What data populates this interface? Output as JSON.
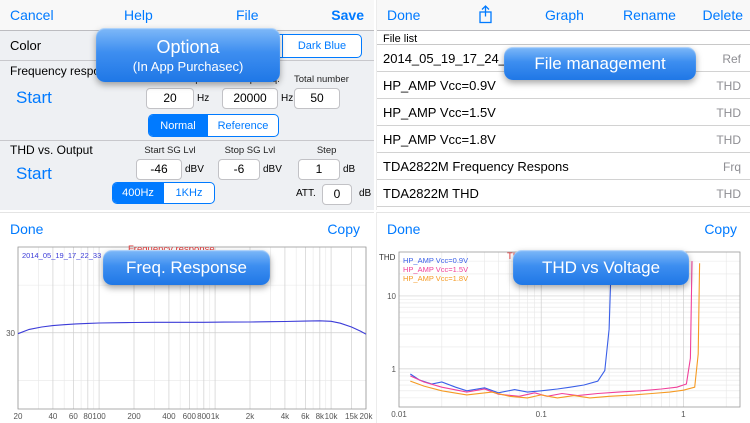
{
  "colors": {
    "accent": "#007aff",
    "title_red": "#e03a3a"
  },
  "settings": {
    "toolbar": {
      "cancel": "Cancel",
      "help": "Help",
      "file": "File",
      "save": "Save"
    },
    "color": {
      "label": "Color",
      "options": [
        "",
        "",
        "Dark Blue"
      ]
    },
    "freq": {
      "title": "Frequency response",
      "start_button": "Start",
      "fields": [
        {
          "label": "Start Freq.",
          "value": "20",
          "unit": "Hz"
        },
        {
          "label": "Stop Freq.",
          "value": "20000",
          "unit": "Hz"
        },
        {
          "label": "Total number",
          "value": "50",
          "unit": ""
        }
      ],
      "mode": {
        "options": [
          "Normal",
          "Reference"
        ],
        "selected": "Normal"
      }
    },
    "thd": {
      "title": "THD vs. Output",
      "start_button": "Start",
      "fields": [
        {
          "label": "Start SG Lvl",
          "value": "-46",
          "unit": "dBV"
        },
        {
          "label": "Stop SG Lvl",
          "value": "-6",
          "unit": "dBV"
        },
        {
          "label": "Step",
          "value": "1",
          "unit": "dB"
        }
      ],
      "sg_freq": {
        "options": [
          "400Hz",
          "1KHz"
        ],
        "selected": "400Hz"
      },
      "att": {
        "label": "ATT.",
        "value": "0",
        "unit": "dB"
      }
    }
  },
  "files": {
    "toolbar": {
      "done": "Done",
      "graph": "Graph",
      "rename": "Rename",
      "delete": "Delete"
    },
    "header": "File list",
    "rows": [
      {
        "name": "2014_05_19_17_24_59",
        "type": "Ref"
      },
      {
        "name": "HP_AMP Vcc=0.9V",
        "type": "THD"
      },
      {
        "name": "HP_AMP Vcc=1.5V",
        "type": "THD"
      },
      {
        "name": "HP_AMP Vcc=1.8V",
        "type": "THD"
      },
      {
        "name": "TDA2822M Frequency Respons",
        "type": "Frq"
      },
      {
        "name": "TDA2822M THD",
        "type": "THD"
      }
    ]
  },
  "graph_panels": {
    "freq": {
      "done": "Done",
      "copy": "Copy"
    },
    "thd": {
      "done": "Done",
      "copy": "Copy"
    }
  },
  "callouts": {
    "options": {
      "line1": "Optiona",
      "line2": "(In App Purchasec)"
    },
    "file_management": "File management",
    "freq_response": "Freq. Response",
    "thd_voltage": "THD vs Voltage"
  },
  "chart_data": [
    {
      "type": "line",
      "title": "Frequency response",
      "title_color": "#e03a3a",
      "x_scale": "log",
      "y_scale": "linear",
      "xlim": [
        20,
        20000
      ],
      "ylim": [
        22,
        39
      ],
      "x_ticks": [
        {
          "v": 20,
          "l": "20"
        },
        {
          "v": 40,
          "l": "40"
        },
        {
          "v": 60,
          "l": "60"
        },
        {
          "v": 80,
          "l": "80"
        },
        {
          "v": 100,
          "l": "100"
        },
        {
          "v": 200,
          "l": "200"
        },
        {
          "v": 400,
          "l": "400"
        },
        {
          "v": 600,
          "l": "600"
        },
        {
          "v": 800,
          "l": "800"
        },
        {
          "v": 1000,
          "l": "1k"
        },
        {
          "v": 2000,
          "l": "2k"
        },
        {
          "v": 4000,
          "l": "4k"
        },
        {
          "v": 6000,
          "l": "6k"
        },
        {
          "v": 8000,
          "l": "8k"
        },
        {
          "v": 10000,
          "l": "10k"
        },
        {
          "v": 15000,
          "l": "15k"
        },
        {
          "v": 20000,
          "l": "20k"
        }
      ],
      "x_grid": [
        30,
        50,
        70,
        90,
        300,
        500,
        700,
        900,
        3000,
        5000,
        7000,
        9000
      ],
      "y_ticks": [
        {
          "v": 30,
          "l": "30"
        }
      ],
      "y_grid": [
        25,
        35
      ],
      "series": [
        {
          "name": "2014_05_19_17_22_33",
          "color": "#3c3cd8",
          "points": [
            [
              20,
              29.9
            ],
            [
              25,
              30.35
            ],
            [
              32,
              30.6
            ],
            [
              40,
              30.75
            ],
            [
              50,
              30.85
            ],
            [
              63,
              30.93
            ],
            [
              80,
              30.98
            ],
            [
              100,
              31.02
            ],
            [
              150,
              31.06
            ],
            [
              200,
              31.08
            ],
            [
              300,
              31.1
            ],
            [
              500,
              31.1
            ],
            [
              800,
              31.1
            ],
            [
              1200,
              31.12
            ],
            [
              2000,
              31.13
            ],
            [
              3000,
              31.16
            ],
            [
              4000,
              31.18
            ],
            [
              6000,
              31.22
            ],
            [
              8000,
              31.26
            ],
            [
              10000,
              31.2
            ],
            [
              12000,
              31.0
            ],
            [
              15000,
              30.6
            ],
            [
              18000,
              30.15
            ],
            [
              20000,
              29.85
            ]
          ]
        }
      ]
    },
    {
      "type": "line",
      "title": "THD vs. Output Voltage",
      "title_color": "#e03a3a",
      "ylabel": "THD",
      "x_scale": "log",
      "y_scale": "log",
      "xlim": [
        0.01,
        2.5
      ],
      "ylim": [
        0.3,
        40
      ],
      "x_ticks": [
        {
          "v": 0.01,
          "l": "0.01"
        },
        {
          "v": 0.1,
          "l": "0.1"
        },
        {
          "v": 1,
          "l": "1"
        }
      ],
      "x_grid": [
        0.02,
        0.03,
        0.04,
        0.05,
        0.06,
        0.07,
        0.08,
        0.09,
        0.2,
        0.3,
        0.4,
        0.5,
        0.6,
        0.7,
        0.8,
        0.9,
        2
      ],
      "y_ticks": [
        {
          "v": 10,
          "l": "10"
        },
        {
          "v": 1,
          "l": "1"
        }
      ],
      "y_grid": [
        0.4,
        0.5,
        0.6,
        0.7,
        0.8,
        0.9,
        2,
        3,
        4,
        5,
        6,
        7,
        8,
        9,
        20,
        30
      ],
      "series": [
        {
          "name": "HP_AMP Vcc=0.9V",
          "color": "#3a5fe8",
          "points": [
            [
              0.012,
              0.85
            ],
            [
              0.014,
              0.7
            ],
            [
              0.017,
              0.62
            ],
            [
              0.02,
              0.66
            ],
            [
              0.025,
              0.56
            ],
            [
              0.03,
              0.5
            ],
            [
              0.04,
              0.55
            ],
            [
              0.05,
              0.47
            ],
            [
              0.065,
              0.52
            ],
            [
              0.08,
              0.48
            ],
            [
              0.1,
              0.5
            ],
            [
              0.13,
              0.53
            ],
            [
              0.16,
              0.56
            ],
            [
              0.2,
              0.6
            ],
            [
              0.25,
              0.68
            ],
            [
              0.28,
              0.95
            ],
            [
              0.3,
              3.5
            ],
            [
              0.31,
              25
            ]
          ]
        },
        {
          "name": "HP_AMP Vcc=1.5V",
          "color": "#f0409a",
          "points": [
            [
              0.012,
              0.8
            ],
            [
              0.015,
              0.66
            ],
            [
              0.02,
              0.56
            ],
            [
              0.03,
              0.48
            ],
            [
              0.04,
              0.53
            ],
            [
              0.05,
              0.45
            ],
            [
              0.07,
              0.42
            ],
            [
              0.09,
              0.47
            ],
            [
              0.11,
              0.42
            ],
            [
              0.14,
              0.46
            ],
            [
              0.18,
              0.43
            ],
            [
              0.25,
              0.46
            ],
            [
              0.35,
              0.48
            ],
            [
              0.5,
              0.5
            ],
            [
              0.7,
              0.53
            ],
            [
              0.9,
              0.56
            ],
            [
              1.05,
              0.62
            ],
            [
              1.12,
              1.4
            ],
            [
              1.15,
              30
            ]
          ]
        },
        {
          "name": "HP_AMP Vcc=1.8V",
          "color": "#f59a23",
          "points": [
            [
              0.012,
              0.68
            ],
            [
              0.015,
              0.58
            ],
            [
              0.02,
              0.5
            ],
            [
              0.03,
              0.44
            ],
            [
              0.045,
              0.48
            ],
            [
              0.06,
              0.42
            ],
            [
              0.08,
              0.4
            ],
            [
              0.1,
              0.44
            ],
            [
              0.13,
              0.4
            ],
            [
              0.17,
              0.43
            ],
            [
              0.22,
              0.4
            ],
            [
              0.3,
              0.42
            ],
            [
              0.45,
              0.44
            ],
            [
              0.6,
              0.46
            ],
            [
              0.8,
              0.48
            ],
            [
              1.0,
              0.51
            ],
            [
              1.2,
              0.56
            ],
            [
              1.27,
              1.6
            ],
            [
              1.3,
              28
            ]
          ]
        }
      ]
    }
  ]
}
